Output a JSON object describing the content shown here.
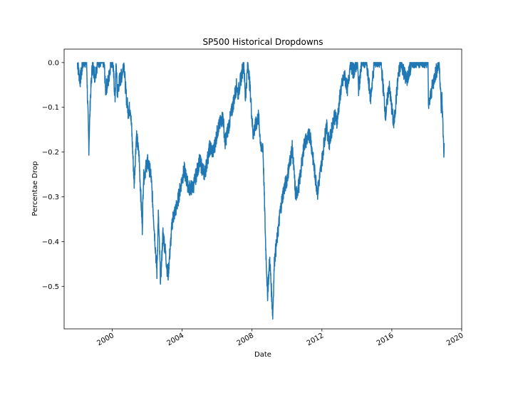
{
  "chart_data": {
    "type": "line",
    "title": "SP500 Historical Dropdowns",
    "xlabel": "Date",
    "ylabel": "Percentae Drop",
    "xlim": [
      "1997-04-01",
      "2020-01-01"
    ],
    "ylim": [
      -0.595,
      0.03
    ],
    "x_ticks": [
      "2000",
      "2004",
      "2008",
      "2012",
      "2016",
      "2020"
    ],
    "y_ticks": [
      "0.0",
      "−0.1",
      "−0.2",
      "−0.3",
      "−0.4",
      "−0.5"
    ],
    "grid": false,
    "legend": "none",
    "colors": {
      "line": "#1f77b4",
      "axes": "#000000",
      "background": "#ffffff"
    },
    "series": [
      {
        "x": [
          "1998-01-01",
          "1998-03-01",
          "1998-05-01",
          "1998-07-15",
          "1998-08-31",
          "1998-10-01",
          "1998-11-15",
          "1999-01-01",
          "1999-03-01",
          "1999-05-01",
          "1999-07-15",
          "1999-08-15",
          "1999-10-15",
          "1999-12-01",
          "2000-01-14",
          "2000-03-01",
          "2000-03-24",
          "2000-04-14",
          "2000-06-01",
          "2000-07-15",
          "2000-09-01",
          "2000-10-15",
          "2000-12-01",
          "2001-01-15",
          "2001-02-15",
          "2001-04-04",
          "2001-05-22",
          "2001-07-15",
          "2001-09-21",
          "2001-10-15",
          "2002-01-04",
          "2002-03-19",
          "2002-05-01",
          "2002-07-23",
          "2002-08-22",
          "2002-10-09",
          "2002-11-27",
          "2003-01-15",
          "2003-03-11",
          "2003-06-15",
          "2003-09-15",
          "2003-12-31",
          "2004-02-15",
          "2004-05-15",
          "2004-08-15",
          "2004-12-31",
          "2005-04-15",
          "2005-08-01",
          "2005-10-15",
          "2006-01-15",
          "2006-05-05",
          "2006-06-15",
          "2006-10-15",
          "2007-02-15",
          "2007-03-15",
          "2007-07-15",
          "2007-08-15",
          "2007-10-09",
          "2007-11-30",
          "2008-01-22",
          "2008-05-15",
          "2008-07-15",
          "2008-08-15",
          "2008-10-10",
          "2008-11-20",
          "2009-01-06",
          "2009-03-09",
          "2009-04-15",
          "2009-06-15",
          "2009-08-15",
          "2009-10-15",
          "2009-12-31",
          "2010-04-23",
          "2010-07-02",
          "2010-09-15",
          "2010-12-31",
          "2011-04-29",
          "2011-08-08",
          "2011-10-03",
          "2011-12-31",
          "2012-04-02",
          "2012-06-04",
          "2012-09-14",
          "2012-11-15",
          "2013-02-01",
          "2013-04-15",
          "2013-06-24",
          "2013-08-15",
          "2013-10-15",
          "2014-01-15",
          "2014-02-03",
          "2014-04-15",
          "2014-07-15",
          "2014-10-15",
          "2014-12-31",
          "2015-05-21",
          "2015-08-25",
          "2015-11-03",
          "2016-02-11",
          "2016-05-15",
          "2016-07-15",
          "2016-11-04",
          "2017-03-01",
          "2017-06-15",
          "2017-10-15",
          "2018-01-26",
          "2018-02-08",
          "2018-04-15",
          "2018-06-15",
          "2018-09-20",
          "2018-10-29",
          "2018-11-15",
          "2018-12-24",
          "2018-12-31"
        ],
        "values": [
          0.0,
          -0.04,
          0.0,
          0.0,
          -0.19,
          -0.08,
          0.0,
          -0.03,
          0.0,
          0.0,
          0.0,
          -0.06,
          -0.04,
          0.0,
          0.0,
          -0.08,
          0.0,
          -0.07,
          -0.04,
          -0.03,
          0.0,
          -0.07,
          -0.11,
          -0.1,
          -0.16,
          -0.27,
          -0.16,
          -0.21,
          -0.37,
          -0.26,
          -0.22,
          -0.25,
          -0.32,
          -0.47,
          -0.34,
          -0.49,
          -0.38,
          -0.42,
          -0.48,
          -0.35,
          -0.32,
          -0.26,
          -0.24,
          -0.28,
          -0.28,
          -0.22,
          -0.25,
          -0.19,
          -0.2,
          -0.15,
          -0.12,
          -0.18,
          -0.12,
          -0.05,
          -0.07,
          0.0,
          -0.08,
          0.0,
          -0.07,
          -0.16,
          -0.12,
          -0.2,
          -0.18,
          -0.4,
          -0.52,
          -0.44,
          -0.565,
          -0.44,
          -0.39,
          -0.33,
          -0.29,
          -0.26,
          -0.19,
          -0.3,
          -0.27,
          -0.18,
          -0.16,
          -0.25,
          -0.29,
          -0.22,
          -0.14,
          -0.18,
          -0.12,
          -0.13,
          -0.06,
          -0.03,
          -0.06,
          0.0,
          -0.02,
          0.0,
          -0.06,
          0.0,
          0.0,
          -0.08,
          0.0,
          0.0,
          -0.12,
          -0.05,
          -0.14,
          -0.03,
          0.0,
          -0.04,
          0.0,
          0.0,
          0.0,
          0.0,
          -0.1,
          -0.06,
          -0.03,
          0.0,
          -0.1,
          -0.08,
          -0.2,
          -0.18
        ]
      }
    ]
  }
}
